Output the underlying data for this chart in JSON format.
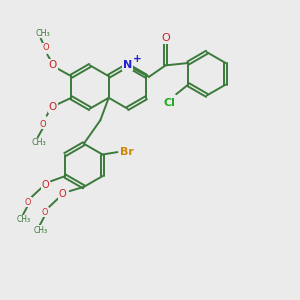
{
  "background_color": "#ebebeb",
  "bond_color": "#3a7a3a",
  "N_color": "#2222cc",
  "O_color": "#cc2222",
  "Br_color": "#cc8800",
  "Cl_color": "#22aa22",
  "lw": 1.4,
  "sep": 0.055,
  "r": 0.72,
  "figsize": [
    3.0,
    3.0
  ],
  "dpi": 100,
  "xlim": [
    0,
    10
  ],
  "ylim": [
    0,
    10
  ]
}
